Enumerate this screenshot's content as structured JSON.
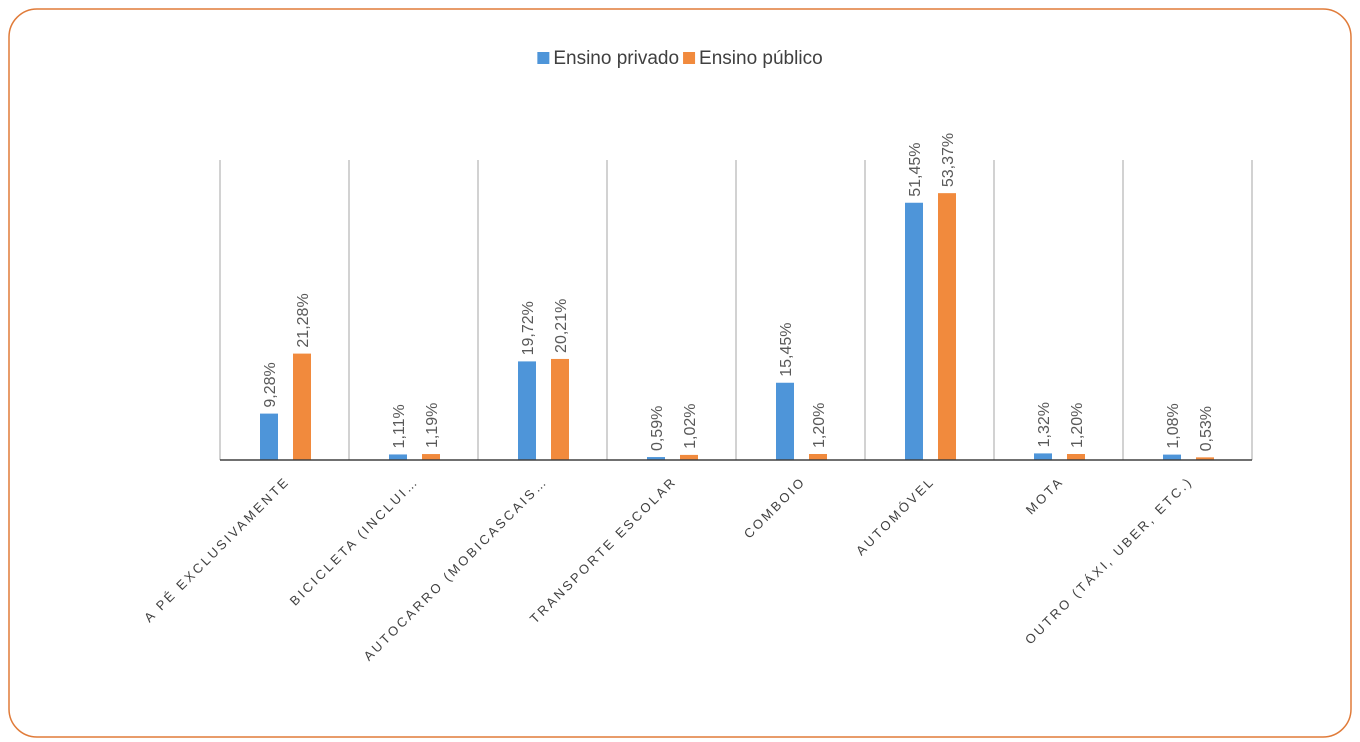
{
  "chart_data": {
    "type": "bar",
    "categories": [
      "A PÉ EXCLUSIVAMENTE",
      "BICICLETA (INCLUI…",
      "AUTOCARRO (MOBICASCAIS…",
      "TRANSPORTE ESCOLAR",
      "COMBOIO",
      "AUTOMÓVEL",
      "MOTA",
      "OUTRO (TÁXI, UBER, ETC.)"
    ],
    "series": [
      {
        "name": "Ensino privado",
        "color": "#4e95d9",
        "values": [
          9.28,
          1.11,
          19.72,
          0.59,
          15.45,
          51.45,
          1.32,
          1.08
        ],
        "value_labels": [
          "9,28%",
          "1,11%",
          "19,72%",
          "0,59%",
          "15,45%",
          "51,45%",
          "1,32%",
          "1,08%"
        ]
      },
      {
        "name": "Ensino público",
        "color": "#f18a3d",
        "values": [
          21.28,
          1.19,
          20.21,
          1.02,
          1.2,
          53.37,
          1.2,
          0.53
        ],
        "value_labels": [
          "21,28%",
          "1,19%",
          "20,21%",
          "1,02%",
          "1,20%",
          "53,37%",
          "1,20%",
          "0,53%"
        ]
      }
    ],
    "ylim": [
      0,
      60
    ],
    "legend": "top"
  }
}
